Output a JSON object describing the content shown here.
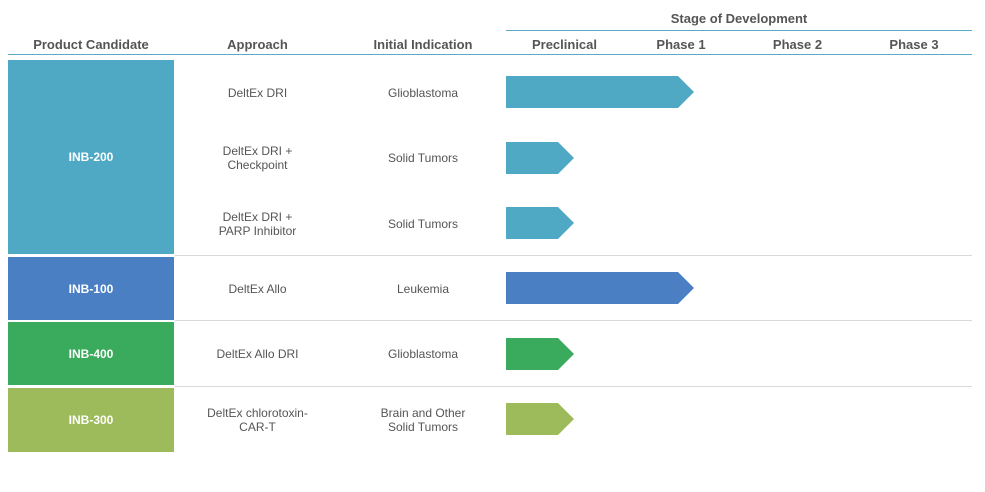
{
  "header": {
    "stage_title": "Stage of Development",
    "columns": {
      "product_candidate": "Product Candidate",
      "approach": "Approach",
      "initial_indication": "Initial Indication",
      "preclinical": "Preclinical",
      "phase1": "Phase 1",
      "phase2": "Phase 2",
      "phase3": "Phase 3"
    }
  },
  "candidates": [
    {
      "name": "INB-200",
      "color": "#4fa9c5"
    },
    {
      "name": "INB-100",
      "color": "#4b7fc3"
    },
    {
      "name": "INB-400",
      "color": "#3aaa5c"
    },
    {
      "name": "INB-300",
      "color": "#9dbb5a"
    }
  ],
  "programs": [
    {
      "candidate": "INB-200",
      "approach": "DeltEx DRI",
      "indication": "Glioblastoma",
      "stage_reached": "Phase 1",
      "color": "#4fa9c5"
    },
    {
      "candidate": "INB-200",
      "approach": "DeltEx DRI +\nCheckpoint",
      "indication": "Solid Tumors",
      "stage_reached": "Preclinical",
      "color": "#4fa9c5"
    },
    {
      "candidate": "INB-200",
      "approach": "DeltEx DRI +\nPARP Inhibitor",
      "indication": "Solid Tumors",
      "stage_reached": "Preclinical",
      "color": "#4fa9c5"
    },
    {
      "candidate": "INB-100",
      "approach": "DeltEx Allo",
      "indication": "Leukemia",
      "stage_reached": "Phase 1",
      "color": "#4b7fc3"
    },
    {
      "candidate": "INB-400",
      "approach": "DeltEx Allo DRI",
      "indication": "Glioblastoma",
      "stage_reached": "Preclinical",
      "color": "#3aaa5c"
    },
    {
      "candidate": "INB-300",
      "approach": "DeltEx chlorotoxin-\nCAR-T",
      "indication": "Brain and Other\nSolid Tumors",
      "stage_reached": "Preclinical",
      "color": "#9dbb5a"
    }
  ]
}
